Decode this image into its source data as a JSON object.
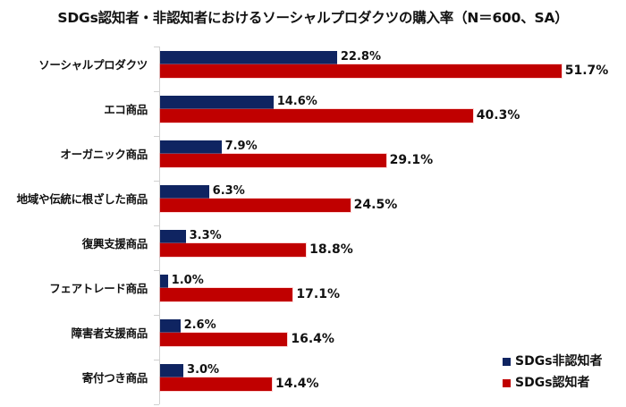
{
  "title": "SDGs認知者・非認知者におけるソーシャルプロダクツの購入率（N＝600、SA）",
  "colors": {
    "non_aware": "#0f2461",
    "aware": "#c00000"
  },
  "legend": [
    {
      "label": "SDGs非認知者",
      "color": "#0f2461"
    },
    {
      "label": "SDGs認知者",
      "color": "#c00000"
    }
  ],
  "chart_data": {
    "type": "bar",
    "orientation": "horizontal",
    "title": "SDGs認知者・非認知者におけるソーシャルプロダクツの購入率（N＝600、SA）",
    "xlabel": "",
    "ylabel": "",
    "categories": [
      "ソーシャルプロダクツ",
      "エコ商品",
      "オーガニック商品",
      "地域や伝統に根ざした商品",
      "復興支援商品",
      "フェアトレード商品",
      "障害者支援商品",
      "寄付つき商品"
    ],
    "series": [
      {
        "name": "SDGs非認知者",
        "color": "#0f2461",
        "values": [
          22.8,
          14.6,
          7.9,
          6.3,
          3.3,
          1.0,
          2.6,
          3.0
        ],
        "labels": [
          "22.8%",
          "14.6%",
          "7.9%",
          "6.3%",
          "3.3%",
          "1.0%",
          "2.6%",
          "3.0%"
        ]
      },
      {
        "name": "SDGs認知者",
        "color": "#c00000",
        "values": [
          51.7,
          40.3,
          29.1,
          24.5,
          18.8,
          17.1,
          16.4,
          14.4
        ],
        "labels": [
          "51.7%",
          "40.3%",
          "29.1%",
          "24.5%",
          "18.8%",
          "17.1%",
          "16.4%",
          "14.4%"
        ]
      }
    ],
    "unit": "%",
    "grid": false,
    "legend_position": "bottom-right",
    "xlim": [
      0,
      60
    ]
  }
}
